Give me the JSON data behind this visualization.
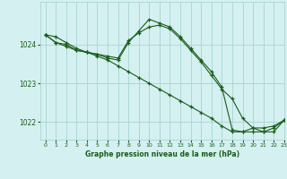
{
  "title": "Graphe pression niveau de la mer (hPa)",
  "bg_color": "#d4f0f0",
  "grid_color": "#a8d4d4",
  "line_color": "#1a5c1a",
  "xlim": [
    -0.5,
    23
  ],
  "ylim": [
    1021.55,
    1025.1
  ],
  "yticks": [
    1022,
    1023,
    1024
  ],
  "xticks": [
    0,
    1,
    2,
    3,
    4,
    5,
    6,
    7,
    8,
    9,
    10,
    11,
    12,
    13,
    14,
    15,
    16,
    17,
    18,
    19,
    20,
    21,
    22,
    23
  ],
  "series": [
    {
      "x": [
        0,
        1,
        2,
        3,
        4,
        5,
        6,
        7,
        8,
        9,
        10,
        11,
        12,
        13,
        14,
        15,
        16,
        17,
        18,
        19,
        20,
        21,
        22,
        23
      ],
      "y": [
        1024.25,
        1024.2,
        1024.05,
        1023.9,
        1023.8,
        1023.7,
        1023.6,
        1023.45,
        1023.3,
        1023.15,
        1023.0,
        1022.85,
        1022.7,
        1022.55,
        1022.4,
        1022.25,
        1022.1,
        1021.9,
        1021.75,
        1021.75,
        1021.85,
        1021.85,
        1021.9,
        1022.05
      ]
    },
    {
      "x": [
        0,
        1,
        2,
        3,
        4,
        5,
        6,
        7,
        8,
        9,
        10,
        11,
        12,
        13,
        14,
        15,
        16,
        17,
        18,
        19,
        20,
        21,
        22,
        23
      ],
      "y": [
        1024.25,
        1024.05,
        1024.0,
        1023.85,
        1023.8,
        1023.75,
        1023.7,
        1023.65,
        1024.1,
        1024.3,
        1024.45,
        1024.5,
        1024.4,
        1024.15,
        1023.85,
        1023.55,
        1023.2,
        1022.85,
        1022.6,
        1022.1,
        1021.85,
        1021.75,
        1021.75,
        1022.05
      ]
    },
    {
      "x": [
        0,
        1,
        2,
        3,
        4,
        5,
        6,
        7,
        8,
        9,
        10,
        11,
        12,
        13,
        14,
        15,
        16,
        17,
        18,
        19,
        20,
        21,
        22,
        23
      ],
      "y": [
        1024.25,
        1024.05,
        1023.95,
        1023.85,
        1023.8,
        1023.75,
        1023.65,
        1023.6,
        1024.05,
        1024.35,
        1024.65,
        1024.55,
        1024.45,
        1024.2,
        1023.9,
        1023.6,
        1023.3,
        1022.9,
        1021.8,
        1021.75,
        1021.75,
        1021.75,
        1021.85,
        1022.05
      ]
    }
  ]
}
